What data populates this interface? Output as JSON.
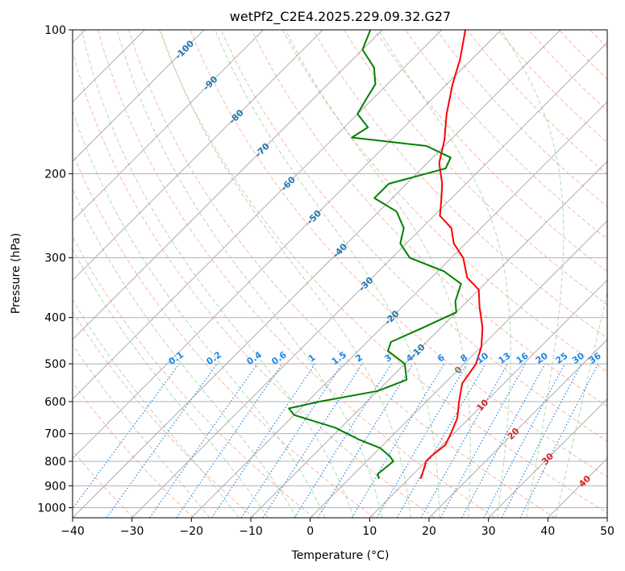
{
  "chart_data": {
    "type": "line",
    "title": "wetPf2_C2E4.2025.229.09.32.G27",
    "xlabel": "Temperature (°C)",
    "ylabel": "Pressure (hPa)",
    "xlim": [
      -40,
      50
    ],
    "ylim": [
      1050,
      100
    ],
    "y_scale": "log",
    "x_ticks": [
      -40,
      -30,
      -20,
      -10,
      0,
      10,
      20,
      30,
      40,
      50
    ],
    "y_ticks": [
      100,
      200,
      300,
      400,
      500,
      600,
      700,
      800,
      900,
      1000
    ],
    "grid": true,
    "skew_angle_deg": 45,
    "colors": {
      "temperature": "#ff0000",
      "dewpoint": "#008000",
      "dry_adiabat": "#f08060",
      "moist_adiabat": "#80c080",
      "mixing_ratio": "#1e88e5",
      "isotherm": "#999999",
      "isotherm_label": "#1f77b4",
      "isotherm_label_warm": "#d62728"
    },
    "series": [
      {
        "key": "temperature",
        "points": [
          [
            870,
            12.0
          ],
          [
            850,
            11.5
          ],
          [
            800,
            10.0
          ],
          [
            780,
            10.0
          ],
          [
            740,
            10.5
          ],
          [
            700,
            9.5
          ],
          [
            650,
            8.0
          ],
          [
            600,
            5.5
          ],
          [
            550,
            3.0
          ],
          [
            500,
            2.0
          ],
          [
            460,
            0.0
          ],
          [
            420,
            -3.0
          ],
          [
            380,
            -7.0
          ],
          [
            350,
            -10.0
          ],
          [
            330,
            -14.0
          ],
          [
            300,
            -18.0
          ],
          [
            280,
            -22.0
          ],
          [
            260,
            -25.0
          ],
          [
            245,
            -29.0
          ],
          [
            230,
            -31.0
          ],
          [
            210,
            -34.0
          ],
          [
            190,
            -38.0
          ],
          [
            170,
            -41.0
          ],
          [
            150,
            -45.0
          ],
          [
            130,
            -49.0
          ],
          [
            115,
            -52.0
          ],
          [
            100,
            -56.0
          ]
        ]
      },
      {
        "key": "dewpoint",
        "points": [
          [
            870,
            5.0
          ],
          [
            850,
            4.0
          ],
          [
            830,
            4.2
          ],
          [
            800,
            4.5
          ],
          [
            780,
            3.0
          ],
          [
            750,
            0.0
          ],
          [
            720,
            -5.0
          ],
          [
            680,
            -11.0
          ],
          [
            640,
            -20.0
          ],
          [
            620,
            -22.0
          ],
          [
            600,
            -18.0
          ],
          [
            570,
            -10.0
          ],
          [
            540,
            -7.0
          ],
          [
            500,
            -10.0
          ],
          [
            470,
            -15.0
          ],
          [
            450,
            -16.0
          ],
          [
            420,
            -13.0
          ],
          [
            390,
            -10.0
          ],
          [
            370,
            -12.0
          ],
          [
            340,
            -14.0
          ],
          [
            320,
            -19.0
          ],
          [
            300,
            -27.0
          ],
          [
            280,
            -31.0
          ],
          [
            260,
            -33.0
          ],
          [
            240,
            -37.0
          ],
          [
            225,
            -43.0
          ],
          [
            210,
            -43.0
          ],
          [
            195,
            -36.0
          ],
          [
            185,
            -37.0
          ],
          [
            175,
            -43.0
          ],
          [
            168,
            -57.0
          ],
          [
            160,
            -56.0
          ],
          [
            150,
            -60.0
          ],
          [
            140,
            -61.0
          ],
          [
            130,
            -62.0
          ],
          [
            120,
            -65.0
          ],
          [
            110,
            -70.0
          ],
          [
            100,
            -72.0
          ]
        ]
      }
    ],
    "isotherm_labels": [
      "-100",
      "-90",
      "-80",
      "-70",
      "-60",
      "-50",
      "-40",
      "-30",
      "-20",
      "-10",
      "0",
      "10",
      "20",
      "30",
      "40"
    ],
    "isotherm_label_values": [
      -100,
      -90,
      -80,
      -70,
      -60,
      -50,
      -40,
      -30,
      -20,
      -10,
      0,
      10,
      20,
      30,
      40
    ],
    "mixing_ratio_labels": [
      "0.1",
      "0.2",
      "0.4",
      "0.6",
      "1",
      "1.5",
      "2",
      "3",
      "4",
      "6",
      "8",
      "10",
      "13",
      "16",
      "20",
      "25",
      "30",
      "36"
    ],
    "mixing_ratio_values": [
      0.1,
      0.2,
      0.4,
      0.6,
      1,
      1.5,
      2,
      3,
      4,
      6,
      8,
      10,
      13,
      16,
      20,
      25,
      30,
      36
    ]
  }
}
